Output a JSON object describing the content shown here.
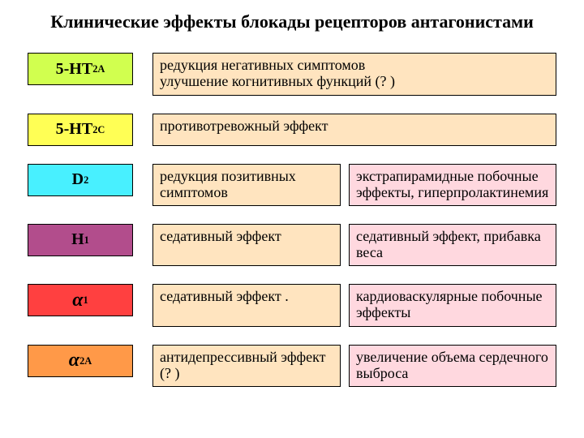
{
  "title": "Клинические эффекты блокады рецепторов антагонистами",
  "rows": [
    {
      "label_html": "5-HT<sub>2A</sub>",
      "label_bg": "#d1ff4f",
      "effects": [
        {
          "text": "редукция негативных симптомов\nулучшение когнитивных функций (? )",
          "bg": "#ffe4bf",
          "span": "single"
        }
      ]
    },
    {
      "label_html": "5-HT<sub>2C</sub>",
      "label_bg": "#ffff55",
      "effects": [
        {
          "text": "противотревожный эффект",
          "bg": "#ffe4bf",
          "span": "single"
        }
      ]
    },
    {
      "label_html": "D<sub>2</sub>",
      "label_bg": "#48f0ff",
      "effects": [
        {
          "text": "редукция позитивных симптомов",
          "bg": "#ffe4bf",
          "span": "left"
        },
        {
          "text": "экстрапирамидные побочные эффекты, гиперпролактинемия",
          "bg": "#ffd8df",
          "span": "right"
        }
      ]
    },
    {
      "label_html": "H<sub>1</sub>",
      "label_bg": "#b24d8c",
      "effects": [
        {
          "text": "седативный эффект",
          "bg": "#ffe4bf",
          "span": "left"
        },
        {
          "text": "седативный эффект, прибавка веса",
          "bg": "#ffd8df",
          "span": "right"
        }
      ]
    },
    {
      "label_html": "<span class=\"alpha\">α</span><sub>1</sub>",
      "label_bg": "#ff4040",
      "effects": [
        {
          "text": "седативный эффект  .",
          "bg": "#ffe4bf",
          "span": "left"
        },
        {
          "text": "кардиоваскулярные побочные  эффекты",
          "bg": "#ffd8df",
          "span": "right"
        }
      ]
    },
    {
      "label_html": "<span class=\"alpha\">α</span><sub>2A</sub>",
      "label_bg": "#ff9948",
      "effects": [
        {
          "text": "антидепрессивный эффект (? )",
          "bg": "#ffe4bf",
          "span": "left"
        },
        {
          "text": "увеличение объема сердечного выброса",
          "bg": "#ffd8df",
          "span": "right"
        }
      ]
    }
  ]
}
